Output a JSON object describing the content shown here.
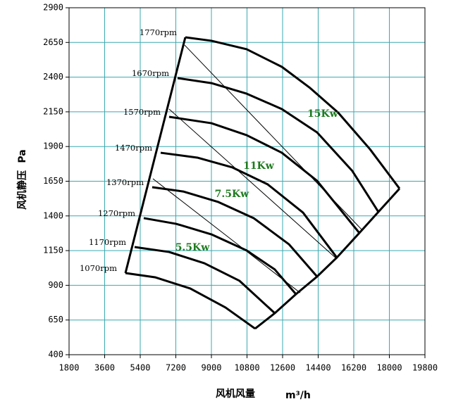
{
  "chart_data": {
    "type": "line",
    "x_label": "风机风量",
    "x_unit": "m³/h",
    "y_label": "风机静压",
    "y_unit": "Pa",
    "xlim": [
      1800,
      19800
    ],
    "xticks": [
      1800,
      3600,
      5400,
      7200,
      9000,
      10800,
      12600,
      14400,
      16200,
      18000,
      19800
    ],
    "ylim": [
      400,
      2900
    ],
    "yticks": [
      400,
      650,
      900,
      1150,
      1400,
      1650,
      1900,
      2150,
      2400,
      2650,
      2900
    ],
    "grid": true,
    "grid_color": "#3aa9b0",
    "series": [
      {
        "name": "1770rpm",
        "color": "#000000",
        "x": [
          7680,
          9000,
          10781,
          12563,
          13988,
          15414,
          17018,
          18514
        ],
        "values": [
          2687,
          2662,
          2601,
          2474,
          2322,
          2144,
          1881,
          1597
        ]
      },
      {
        "name": "1670rpm",
        "color": "#000000",
        "x": [
          7288,
          9000,
          10781,
          12563,
          14344,
          16126,
          17445
        ],
        "values": [
          2393,
          2357,
          2281,
          2170,
          2002,
          1724,
          1429
        ]
      },
      {
        "name": "1570rpm",
        "color": "#000000",
        "x": [
          6861,
          9000,
          10781,
          12563,
          14344,
          16482
        ],
        "values": [
          2114,
          2068,
          1982,
          1855,
          1653,
          1277
        ]
      },
      {
        "name": "1470rpm",
        "color": "#000000",
        "x": [
          6433,
          8286,
          10068,
          11850,
          13632,
          15343
        ],
        "values": [
          1855,
          1820,
          1749,
          1627,
          1424,
          1100
        ]
      },
      {
        "name": "1370rpm",
        "color": "#000000",
        "x": [
          6005,
          7573,
          9355,
          11137,
          12919,
          14344
        ],
        "values": [
          1607,
          1576,
          1500,
          1384,
          1196,
          963
        ]
      },
      {
        "name": "1270rpm",
        "color": "#000000",
        "x": [
          5578,
          7217,
          9000,
          10781,
          12206,
          13275
        ],
        "values": [
          1384,
          1343,
          1267,
          1151,
          1014,
          836
        ]
      },
      {
        "name": "1170rpm",
        "color": "#000000",
        "x": [
          5114,
          6861,
          8643,
          10425,
          12206
        ],
        "values": [
          1176,
          1140,
          1059,
          932,
          699
        ]
      },
      {
        "name": "1070rpm",
        "color": "#000000",
        "x": [
          4651,
          6148,
          7930,
          9712,
          11209
        ],
        "values": [
          988,
          958,
          877,
          740,
          588
        ]
      }
    ],
    "power_lines": [
      {
        "x": [
          7645,
          16626
        ],
        "values": [
          2631,
          1298
        ]
      },
      {
        "x": [
          6861,
          15343
        ],
        "values": [
          2170,
          1090
        ]
      },
      {
        "x": [
          6041,
          13489
        ],
        "values": [
          1668,
          846
        ]
      }
    ],
    "annotations": [
      {
        "text": "15Kw",
        "x": 14629,
        "y": 2134
      },
      {
        "text": "11Kw",
        "x": 11386,
        "y": 1759
      },
      {
        "text": "7.5Kw",
        "x": 10032,
        "y": 1556
      },
      {
        "text": "5.5Kw",
        "x": 8037,
        "y": 1171
      }
    ]
  }
}
